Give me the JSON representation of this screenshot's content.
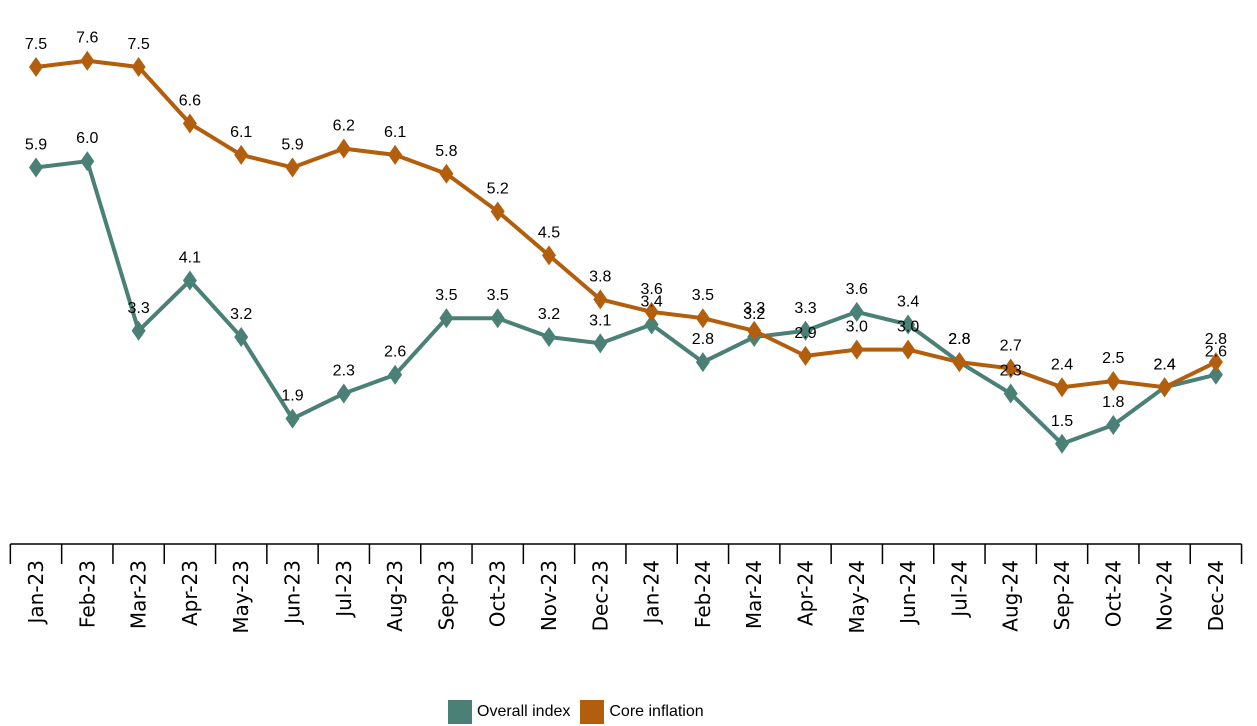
{
  "chart_data": {
    "type": "line",
    "categories": [
      "Jan-23",
      "Feb-23",
      "Mar-23",
      "Apr-23",
      "May-23",
      "Jun-23",
      "Jul-23",
      "Aug-23",
      "Sep-23",
      "Oct-23",
      "Nov-23",
      "Dec-23",
      "Jan-24",
      "Feb-24",
      "Mar-24",
      "Apr-24",
      "May-24",
      "Jun-24",
      "Jul-24",
      "Aug-24",
      "Sep-24",
      "Oct-24",
      "Nov-24",
      "Dec-24"
    ],
    "series": [
      {
        "name": "Overall index",
        "color": "#4a8076",
        "marker": "diamond",
        "values": [
          5.9,
          6.0,
          3.3,
          4.1,
          3.2,
          1.9,
          2.3,
          2.6,
          3.5,
          3.5,
          3.2,
          3.1,
          3.4,
          2.8,
          3.2,
          3.3,
          3.6,
          3.4,
          2.8,
          2.3,
          1.5,
          1.8,
          2.4,
          2.6
        ]
      },
      {
        "name": "Core inflation",
        "color": "#b35e0c",
        "marker": "diamond",
        "values": [
          7.5,
          7.6,
          7.5,
          6.6,
          6.1,
          5.9,
          6.2,
          6.1,
          5.8,
          5.2,
          4.5,
          3.8,
          3.6,
          3.5,
          3.3,
          2.9,
          3.0,
          3.0,
          2.8,
          2.7,
          2.4,
          2.5,
          2.4,
          2.8
        ]
      }
    ],
    "data_labels": true,
    "ylim": [
      0,
      8
    ],
    "grid": false,
    "legend_position": "bottom-center"
  }
}
